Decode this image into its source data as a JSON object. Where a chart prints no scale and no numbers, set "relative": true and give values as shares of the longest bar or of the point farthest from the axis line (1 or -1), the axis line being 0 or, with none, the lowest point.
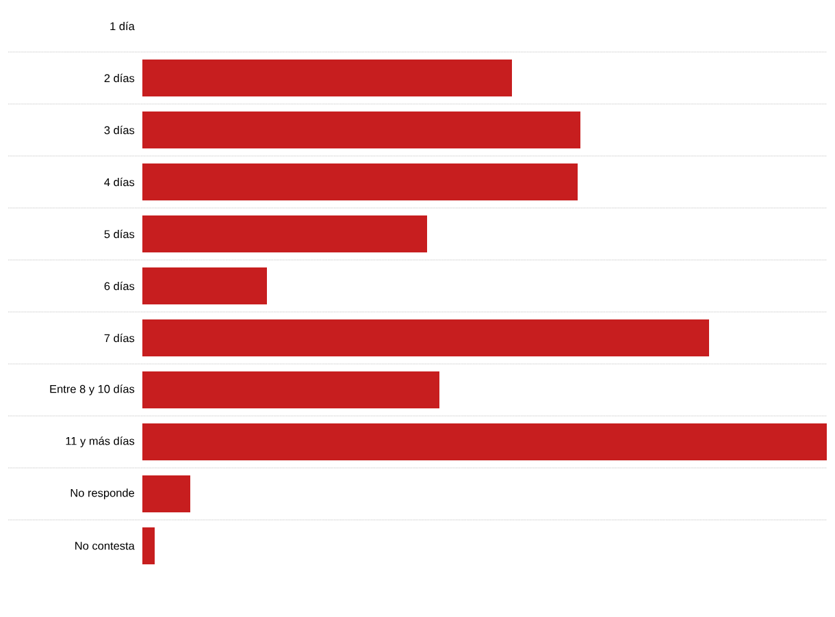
{
  "chart_data": {
    "type": "bar",
    "orientation": "horizontal",
    "relative": true,
    "categories": [
      "1 día",
      "2 días",
      "3 días",
      "4 días",
      "5 días",
      "6 días",
      "7 días",
      "Entre 8 y 10 días",
      "11 y más días",
      "No responde",
      "No contesta"
    ],
    "values": [
      0,
      0.54,
      0.64,
      0.636,
      0.416,
      0.182,
      0.828,
      0.434,
      1.0,
      0.07,
      0.018
    ],
    "color": "#c71e1f",
    "grid": "y"
  }
}
